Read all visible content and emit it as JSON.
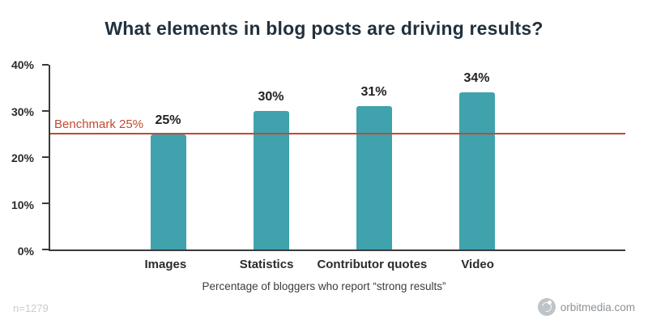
{
  "chart_data": {
    "type": "bar",
    "title": "What elements in blog posts are driving results?",
    "categories": [
      "Images",
      "Statistics",
      "Contributor quotes",
      "Video"
    ],
    "values": [
      25,
      30,
      31,
      34
    ],
    "value_labels": [
      "25%",
      "30%",
      "31%",
      "34%"
    ],
    "xlabel": "Percentage of bloggers who report “strong results”",
    "ylabel": "",
    "ylim": [
      0,
      40
    ],
    "yticks": [
      "0%",
      "10%",
      "20%",
      "30%",
      "40%"
    ],
    "benchmark": {
      "value": 25,
      "label": "Benchmark 25%"
    },
    "bar_color": "#3fa2ad",
    "benchmark_color": "#c04a2f",
    "grid": "off",
    "legend": "none"
  },
  "footer": {
    "sample_note": "n=1279",
    "brand": "orbitmedia.com"
  }
}
